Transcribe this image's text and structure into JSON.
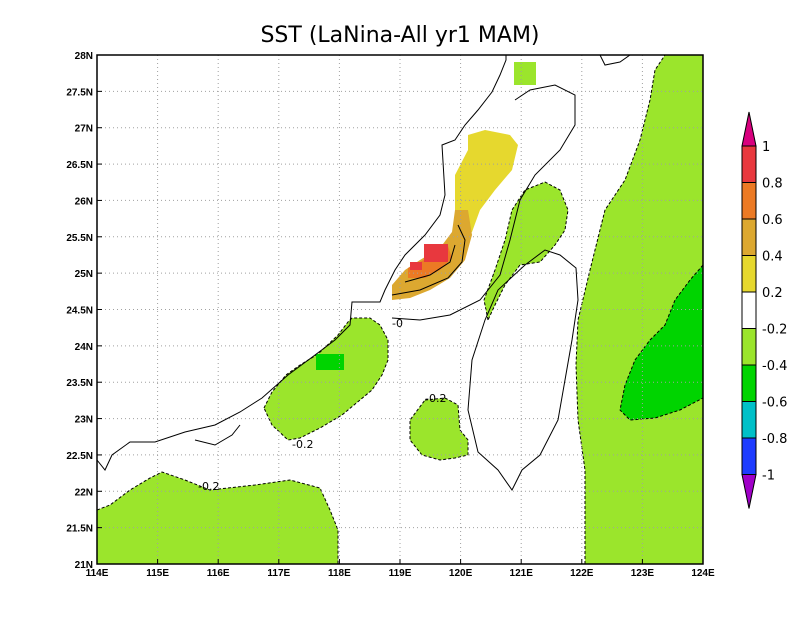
{
  "title": "SST (LaNina-All yr1 MAM)",
  "colors": {
    "land_fill": "#ffffff",
    "grid": "#a0a0a0",
    "green_light": "#9be52c",
    "green_mid": "#00d400",
    "yellow": "#e6d82e",
    "gold": "#dca830",
    "orange": "#ec7a24",
    "red": "#e8383e"
  },
  "chart_data": {
    "type": "map",
    "title": "SST (LaNina-All yr1 MAM)",
    "xlim": [
      114,
      124
    ],
    "ylim": [
      21,
      28
    ],
    "x_ticks": [
      "114E",
      "115E",
      "116E",
      "117E",
      "118E",
      "119E",
      "120E",
      "121E",
      "122E",
      "123E",
      "124E"
    ],
    "y_ticks": [
      "21N",
      "21.5N",
      "22N",
      "22.5N",
      "23N",
      "23.5N",
      "24N",
      "24.5N",
      "25N",
      "25.5N",
      "26N",
      "26.5N",
      "27N",
      "27.5N",
      "28N"
    ],
    "grid": true,
    "contour_labels": [
      "-0.2",
      "-0.2",
      "-0.2",
      "-0"
    ],
    "colorbar": {
      "levels": [
        "1",
        "0.8",
        "0.6",
        "0.4",
        "0.2",
        "-0.2",
        "-0.4",
        "-0.6",
        "-0.8",
        "-1"
      ],
      "colors": [
        "#d8007e",
        "#e8383e",
        "#ec7a24",
        "#dca830",
        "#e6d82e",
        "#ffffff",
        "#9be52c",
        "#00d400",
        "#00c0c8",
        "#1e3cff",
        "#a000c8"
      ],
      "orientation": "vertical",
      "position": "right"
    }
  }
}
